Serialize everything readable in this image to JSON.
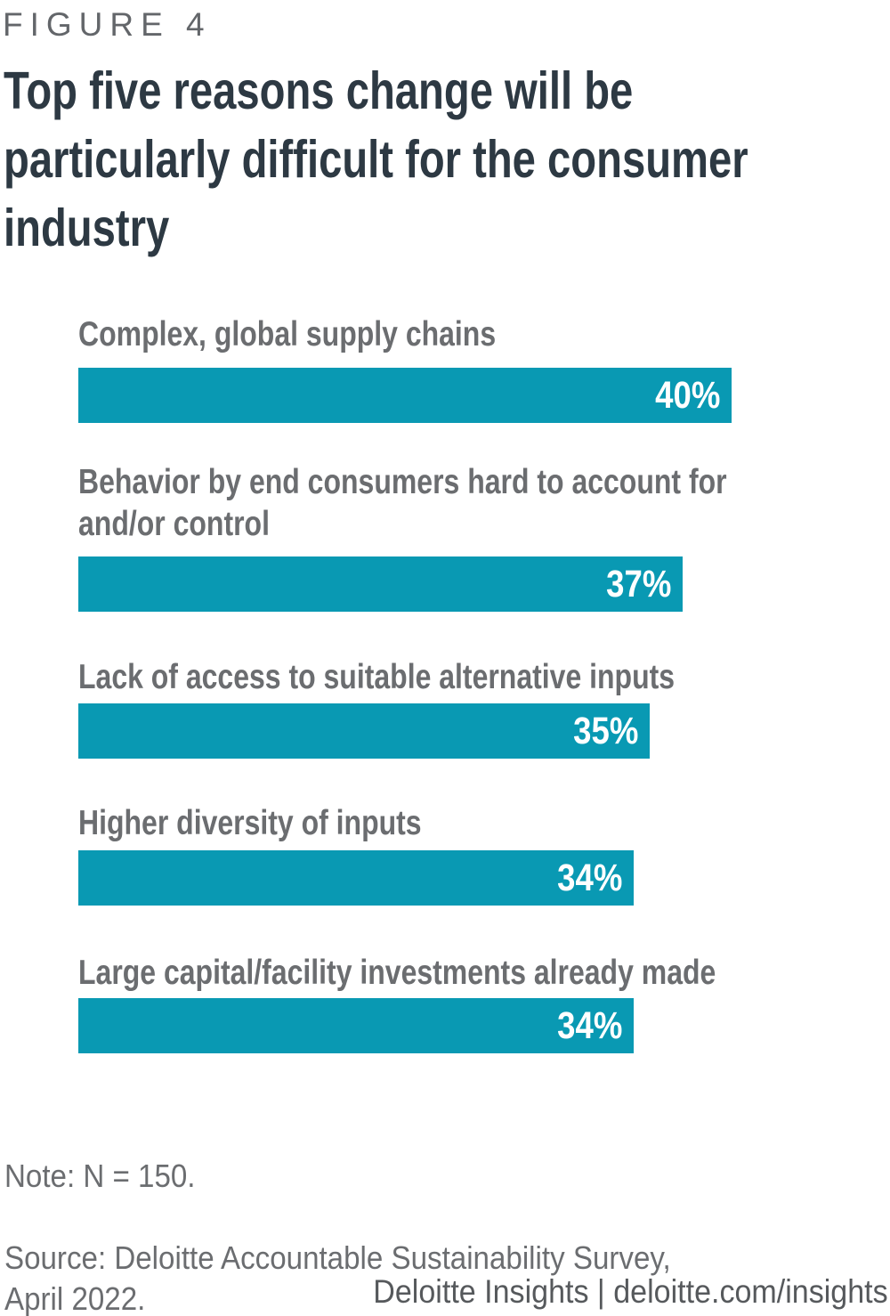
{
  "figure_label": "FIGURE 4",
  "title": "Top five reasons change will be\nparticularly difficult for the consumer\nindustry",
  "chart_data": {
    "type": "bar",
    "orientation": "horizontal",
    "title": "Top five reasons change will be particularly difficult for the consumer industry",
    "categories": [
      "Complex, global supply chains",
      "Behavior by end consumers hard to account for\nand/or control",
      "Lack of access to suitable alternative inputs",
      "Higher diversity of inputs",
      "Large capital/facility investments already made"
    ],
    "values": [
      40,
      37,
      35,
      34,
      34
    ],
    "value_labels": [
      "40%",
      "37%",
      "35%",
      "34%",
      "34%"
    ],
    "xlim": [
      0,
      40
    ],
    "grid": false,
    "legend": false,
    "bar_color": "#0999b3",
    "value_label_color": "#ffffff",
    "category_label_color": "#6b6d70"
  },
  "note": "Note: N = 150.",
  "source": "Source: Deloitte Accountable Sustainability Survey,\nApril 2022.",
  "footer": "Deloitte Insights | deloitte.com/insights"
}
